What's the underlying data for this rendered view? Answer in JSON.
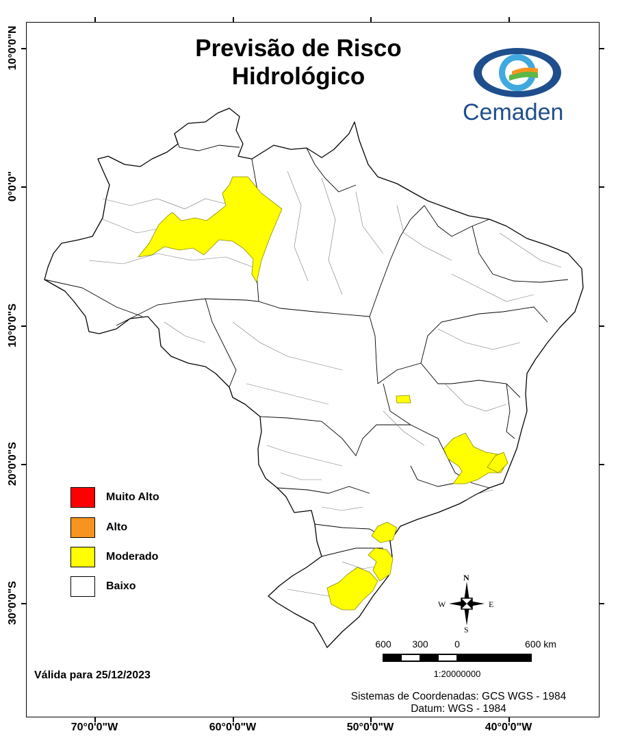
{
  "title_line1": "Previsão de Risco",
  "title_line2": "Hidrológico",
  "logo_text": "Cemaden",
  "longitude_labels": [
    "70°0'0\"W",
    "60°0'0\"W",
    "50°0'0\"W",
    "40°0'0\"W"
  ],
  "latitude_labels": [
    "10°0'0\"N",
    "0°0'0\"",
    "10°0'0\"S",
    "20°0'0\"S",
    "30°0'0\"S"
  ],
  "legend": [
    {
      "label": "Muito Alto",
      "color": "#ff0000"
    },
    {
      "label": "Alto",
      "color": "#f7941d"
    },
    {
      "label": "Moderado",
      "color": "#ffff00"
    },
    {
      "label": "Baixo",
      "color": "#ffffff"
    }
  ],
  "valid_date": "Válida para 25/12/2023",
  "coordinate_system": "Sistemas de Coordenadas: GCS WGS - 1984",
  "datum": "Datum: WGS - 1984",
  "scale": {
    "labels": [
      "600",
      "300",
      "0",
      "600 km"
    ],
    "ratio": "1:20000000"
  },
  "compass": {
    "n": "N",
    "s": "S",
    "e": "E",
    "w": "W"
  },
  "colors": {
    "moderate_fill": "#ffff00",
    "logo_blue": "#1f4e8c",
    "logo_light_blue": "#3fa9e0",
    "logo_green": "#5bb846",
    "logo_orange": "#f7941d"
  },
  "map": {
    "country": "Brasil",
    "risk_levels_present": [
      "Moderado",
      "Baixo"
    ]
  }
}
